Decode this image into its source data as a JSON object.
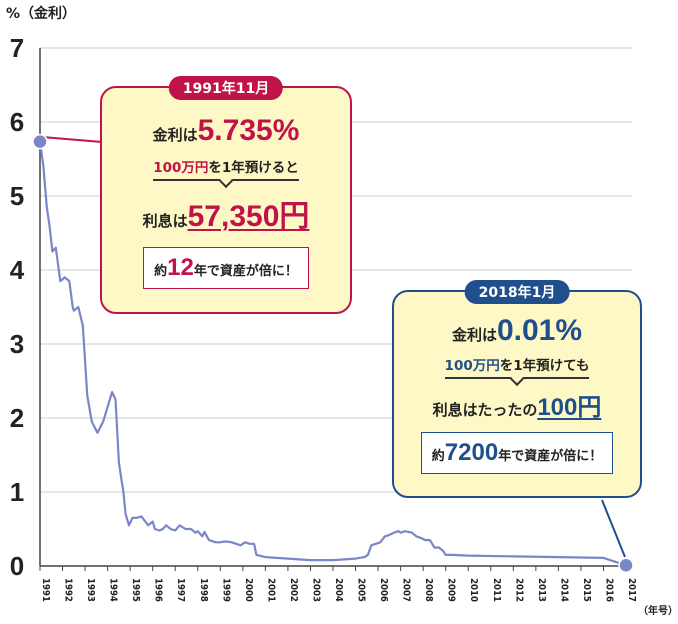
{
  "chart_data": {
    "type": "line",
    "ylabel": "%（金利）",
    "xunit": "（年号）",
    "ylim": [
      0,
      7
    ],
    "yticks": [
      "0",
      "1",
      "2",
      "3",
      "4",
      "5",
      "6",
      "7"
    ],
    "xlim": [
      1991,
      2017
    ],
    "xticks": [
      "1991",
      "1992",
      "1993",
      "1994",
      "1995",
      "1996",
      "1997",
      "1998",
      "1999",
      "2000",
      "2001",
      "2002",
      "2003",
      "2004",
      "2005",
      "2006",
      "2007",
      "2008",
      "2009",
      "2010",
      "2011",
      "2012",
      "2013",
      "2014",
      "2015",
      "2016",
      "2017"
    ],
    "grid": true,
    "line_color": "#7b86c8",
    "series": [
      {
        "x": [
          1991.0,
          1991.15,
          1991.3,
          1991.42,
          1991.55,
          1991.7,
          1991.9,
          1992.1,
          1992.3,
          1992.45,
          1992.5,
          1992.7,
          1992.9,
          1993.1,
          1993.3,
          1993.55,
          1993.8,
          1994.0,
          1994.2,
          1994.35,
          1994.5,
          1994.6,
          1994.7,
          1994.8,
          1994.95,
          1995.1,
          1995.3,
          1995.5,
          1995.8,
          1996.0,
          1996.1,
          1996.3,
          1996.45,
          1996.6,
          1996.8,
          1997.0,
          1997.2,
          1997.45,
          1997.7,
          1997.9,
          1998.0,
          1998.2,
          1998.3,
          1998.5,
          1998.8,
          1999.0,
          1999.15,
          1999.3,
          1999.5,
          1999.9,
          2000.1,
          2000.3,
          2000.5,
          2000.6,
          2001.0,
          2002.0,
          2003.0,
          2004.0,
          2005.0,
          2005.4,
          2005.55,
          2005.7,
          2005.9,
          2006.1,
          2006.3,
          2006.5,
          2006.7,
          2006.9,
          2007.0,
          2007.2,
          2007.5,
          2007.7,
          2007.9,
          2008.1,
          2008.3,
          2008.5,
          2008.7,
          2008.9,
          2009.0,
          2009.3,
          2010.0,
          2012.0,
          2014.0,
          2016.0,
          2017.0
        ],
        "y": [
          5.735,
          5.4,
          4.85,
          4.6,
          4.25,
          4.3,
          3.85,
          3.9,
          3.85,
          3.5,
          3.45,
          3.5,
          3.25,
          2.3,
          1.95,
          1.8,
          1.95,
          2.15,
          2.35,
          2.25,
          1.4,
          1.2,
          1.0,
          0.7,
          0.55,
          0.65,
          0.65,
          0.67,
          0.55,
          0.6,
          0.5,
          0.48,
          0.5,
          0.55,
          0.5,
          0.48,
          0.55,
          0.5,
          0.5,
          0.45,
          0.47,
          0.4,
          0.46,
          0.35,
          0.32,
          0.32,
          0.33,
          0.33,
          0.32,
          0.28,
          0.32,
          0.3,
          0.3,
          0.15,
          0.12,
          0.1,
          0.08,
          0.08,
          0.1,
          0.12,
          0.15,
          0.28,
          0.3,
          0.32,
          0.4,
          0.42,
          0.45,
          0.47,
          0.45,
          0.47,
          0.45,
          0.4,
          0.38,
          0.35,
          0.35,
          0.25,
          0.25,
          0.2,
          0.15,
          0.15,
          0.14,
          0.13,
          0.12,
          0.11,
          0.01
        ]
      }
    ],
    "highlight_points": [
      {
        "x": 1991.0,
        "y": 5.735
      },
      {
        "x": 2017.0,
        "y": 0.01
      }
    ]
  },
  "callout_1991": {
    "badge": "1991年11月",
    "rate_label": "金利は",
    "rate_value": "5.735%",
    "premise_a": "100万円",
    "premise_b": "を1年預けると",
    "interest_label": "利息は",
    "interest_value": "57,350円",
    "double_prefix": "約",
    "double_years": "12",
    "double_suffix": "年で資産が倍に！"
  },
  "callout_2018": {
    "badge": "2018年1月",
    "rate_label": "金利は",
    "rate_value": "0.01%",
    "premise_a": "100万円",
    "premise_b": "を1年預けても",
    "interest_label": "利息はたったの",
    "interest_value": "100円",
    "double_prefix": "約",
    "double_years": "7200",
    "double_suffix": "年で資産が倍に！"
  }
}
